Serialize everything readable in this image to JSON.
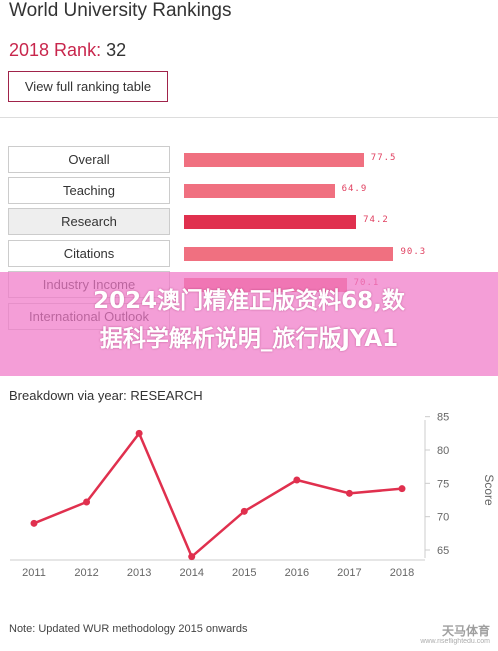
{
  "header": {
    "title": "World University Rankings",
    "rank_label": "2018 Rank:",
    "rank_value": "32",
    "view_button": "View full ranking table"
  },
  "metrics": [
    {
      "label": "Overall",
      "value": 77.5,
      "value_text": "77.5",
      "active": false
    },
    {
      "label": "Teaching",
      "value": 64.9,
      "value_text": "64.9",
      "active": false
    },
    {
      "label": "Research",
      "value": 74.2,
      "value_text": "74.2",
      "active": true
    },
    {
      "label": "Citations",
      "value": 90.3,
      "value_text": "90.3",
      "active": false
    },
    {
      "label": "Industry Income",
      "value": 70.1,
      "value_text": "70.1",
      "active": false
    },
    {
      "label": "International Outlook",
      "value": 0,
      "value_text": "",
      "active": false
    }
  ],
  "overlay": {
    "line1": "2024澳门精准正版资料68,数",
    "line2": "据科学解析说明_旅行版JYA1"
  },
  "breakdown_title": "Breakdown via year: RESEARCH",
  "note": "Note: Updated WUR methodology 2015 onwards",
  "watermark": "天马体育",
  "watermark_sub": "www.riseflightedu.com",
  "colors": {
    "accent": "#e0304e",
    "bar": "#f07080",
    "brand": "#a0234a"
  },
  "chart_data": {
    "type": "line",
    "title": "Breakdown via year: RESEARCH",
    "x": [
      "2011",
      "2012",
      "2013",
      "2014",
      "2015",
      "2016",
      "2017",
      "2018"
    ],
    "values": [
      69.0,
      72.2,
      82.5,
      64.0,
      70.8,
      75.5,
      73.5,
      74.2
    ],
    "ylabel": "Score",
    "ylim": [
      62,
      86
    ],
    "yticks": [
      65,
      70,
      75,
      80,
      85
    ],
    "grid": false
  }
}
